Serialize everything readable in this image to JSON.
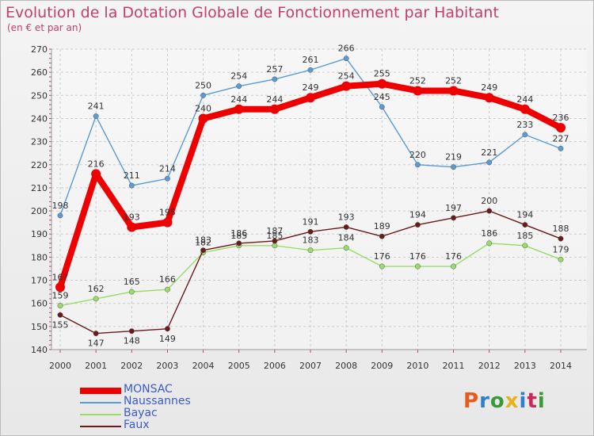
{
  "header": {
    "title": "Evolution de la Dotation Globale de Fonctionnement par Habitant",
    "subtitle": "(en € et par an)"
  },
  "brand": {
    "letters": [
      "P",
      "r",
      "o",
      "x",
      "i",
      "t",
      "i"
    ],
    "colors": [
      "#e85a1b",
      "#2f7fd0",
      "#3a9a3a",
      "#e8b21b",
      "#2f7fd0",
      "#c8285a",
      "#3a9a3a"
    ]
  },
  "chart_data": {
    "type": "line",
    "title": "Evolution de la Dotation Globale de Fonctionnement par Habitant",
    "subtitle": "(en € et par an)",
    "x": [
      "2000",
      "2001",
      "2002",
      "2003",
      "2004",
      "2005",
      "2006",
      "2007",
      "2008",
      "2009",
      "2010",
      "2011",
      "2012",
      "2013",
      "2014"
    ],
    "ylim": [
      140,
      270
    ],
    "yticks": [
      140,
      150,
      160,
      170,
      180,
      190,
      200,
      210,
      220,
      230,
      240,
      250,
      260,
      270
    ],
    "grid": true,
    "legend_position": "bottom-left",
    "series": [
      {
        "name": "MONSAC",
        "color": "#ee0000",
        "values": [
          167,
          216,
          193,
          195,
          240,
          244,
          244,
          249,
          254,
          255,
          252,
          252,
          249,
          244,
          236
        ]
      },
      {
        "name": "Naussannes",
        "color": "#5b9bd5",
        "values": [
          198,
          241,
          211,
          214,
          250,
          254,
          257,
          261,
          266,
          245,
          220,
          219,
          221,
          233,
          227
        ]
      },
      {
        "name": "Bayac",
        "color": "#99dd66",
        "values": [
          159,
          162,
          165,
          166,
          182,
          185,
          185,
          183,
          184,
          176,
          176,
          176,
          186,
          185,
          179
        ]
      },
      {
        "name": "Faux",
        "color": "#6b1a1a",
        "values": [
          155,
          147,
          148,
          149,
          183,
          186,
          187,
          191,
          193,
          189,
          194,
          197,
          200,
          194,
          188
        ]
      }
    ]
  }
}
